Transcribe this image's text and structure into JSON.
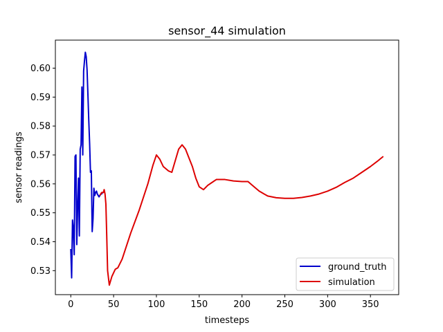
{
  "chart_data": {
    "type": "line",
    "title": "sensor_44 simulation",
    "xlabel": "timesteps",
    "ylabel": "sensor readings",
    "xlim": [
      -18,
      383
    ],
    "ylim": [
      0.5217,
      0.6097
    ],
    "xticks": [
      0,
      50,
      100,
      150,
      200,
      250,
      300,
      350
    ],
    "yticks": [
      0.53,
      0.54,
      0.55,
      0.56,
      0.57,
      0.58,
      0.59,
      0.6
    ],
    "ytick_labels": [
      "0.53",
      "0.54",
      "0.55",
      "0.56",
      "0.57",
      "0.58",
      "0.59",
      "0.60"
    ],
    "grid": false,
    "legend_position": "lower-right",
    "series": [
      {
        "name": "ground_truth",
        "color": "#0000cc",
        "x": [
          0,
          1,
          2,
          3,
          4,
          5,
          6,
          7,
          8,
          9,
          10,
          11,
          12,
          13,
          14,
          15,
          16,
          17,
          18,
          19,
          20,
          21,
          22,
          23,
          24,
          25,
          26,
          27,
          28,
          29,
          30,
          31,
          32,
          33,
          34,
          35,
          36,
          37,
          38
        ],
        "y": [
          0.5375,
          0.5275,
          0.5475,
          0.5445,
          0.5355,
          0.5695,
          0.57,
          0.539,
          0.5525,
          0.562,
          0.542,
          0.572,
          0.5735,
          0.5935,
          0.57,
          0.599,
          0.6025,
          0.6055,
          0.604,
          0.5995,
          0.591,
          0.582,
          0.574,
          0.564,
          0.5645,
          0.5435,
          0.548,
          0.5585,
          0.556,
          0.557,
          0.5575,
          0.5565,
          0.556,
          0.5555,
          0.556,
          0.5565,
          0.5565,
          0.557,
          0.557
        ]
      },
      {
        "name": "simulation",
        "color": "#dd0000",
        "x": [
          34,
          36,
          38,
          39,
          40,
          41,
          42,
          43,
          45,
          48,
          52,
          55,
          60,
          70,
          80,
          90,
          96,
          100,
          104,
          108,
          114,
          118,
          122,
          126,
          130,
          134,
          138,
          142,
          146,
          150,
          155,
          160,
          165,
          170,
          180,
          190,
          200,
          207,
          212,
          220,
          230,
          240,
          250,
          260,
          270,
          280,
          290,
          300,
          310,
          320,
          330,
          340,
          350,
          358,
          365
        ],
        "y": [
          0.556,
          0.557,
          0.557,
          0.558,
          0.5565,
          0.553,
          0.542,
          0.53,
          0.525,
          0.528,
          0.5305,
          0.531,
          0.534,
          0.543,
          0.551,
          0.56,
          0.5665,
          0.57,
          0.5685,
          0.566,
          0.5645,
          0.564,
          0.568,
          0.572,
          0.5735,
          0.572,
          0.569,
          0.566,
          0.562,
          0.559,
          0.558,
          0.5595,
          0.5605,
          0.5615,
          0.5615,
          0.561,
          0.5608,
          0.5608,
          0.5595,
          0.5575,
          0.5558,
          0.5552,
          0.555,
          0.555,
          0.5553,
          0.5558,
          0.5565,
          0.5575,
          0.5588,
          0.5605,
          0.562,
          0.564,
          0.566,
          0.5678,
          0.5695
        ]
      }
    ]
  }
}
